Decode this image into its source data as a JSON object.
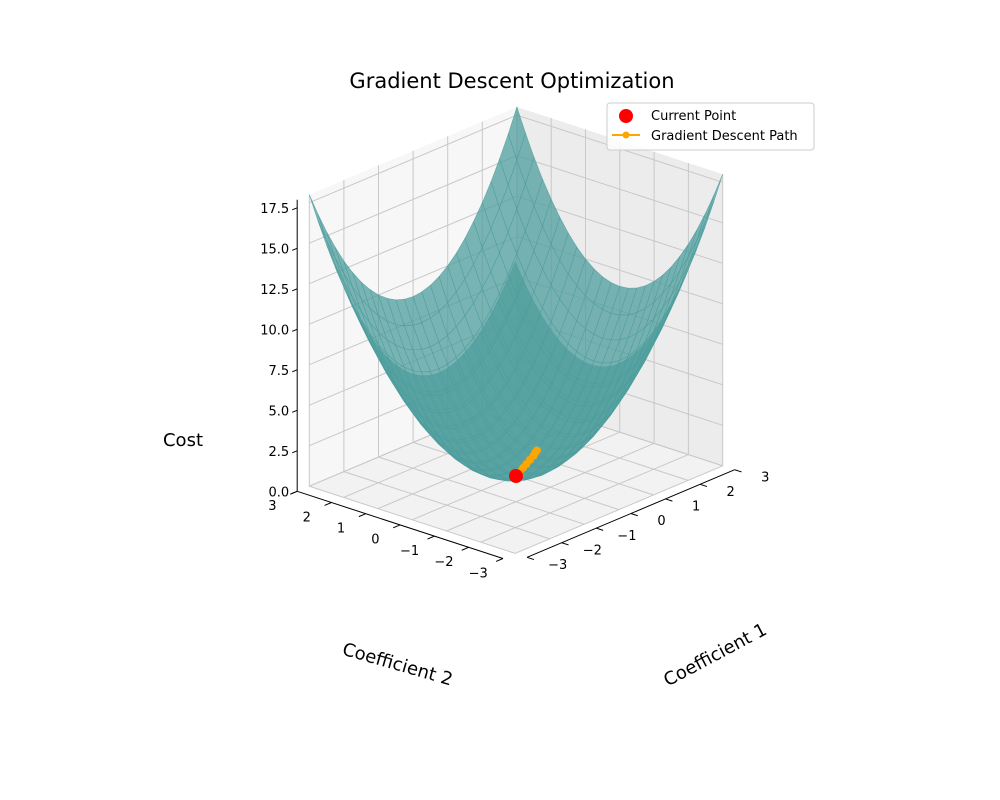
{
  "chart_data": {
    "type": "surface3d",
    "title": "Gradient Descent Optimization",
    "xlabel": "Coefficient 1",
    "ylabel": "Coefficient 2",
    "zlabel": "Cost",
    "xlim": [
      -3,
      3
    ],
    "ylim": [
      -3,
      3
    ],
    "zlim": [
      0,
      18
    ],
    "x_ticks": [
      "−3",
      "−2",
      "−1",
      "0",
      "1",
      "2",
      "3"
    ],
    "y_ticks": [
      "−3",
      "−2",
      "−1",
      "0",
      "1",
      "2",
      "3"
    ],
    "z_ticks": [
      "0.0",
      "2.5",
      "5.0",
      "7.5",
      "10.0",
      "12.5",
      "15.0",
      "17.5"
    ],
    "grid": true,
    "legend_position": "top-right",
    "surface": {
      "function": "cost = c1^2 + c2^2",
      "color": "#4f9d9d",
      "alpha": 0.75
    },
    "current_point": {
      "label": "Current Point",
      "x": 0,
      "y": 0,
      "z": 0,
      "color": "#ff0000"
    },
    "path": {
      "label": "Gradient Descent Path",
      "color": "#ffa500",
      "points": [
        [
          0.0,
          0.0,
          0.0
        ],
        [
          0.2,
          0.1,
          0.0
        ],
        [
          0.4,
          0.2,
          0.0
        ],
        [
          0.6,
          0.3,
          0.0
        ],
        [
          0.8,
          0.4,
          0.0
        ],
        [
          1.0,
          0.5,
          0.0
        ],
        [
          1.15,
          0.6,
          0.0
        ],
        [
          1.25,
          0.65,
          0.0
        ]
      ]
    }
  }
}
